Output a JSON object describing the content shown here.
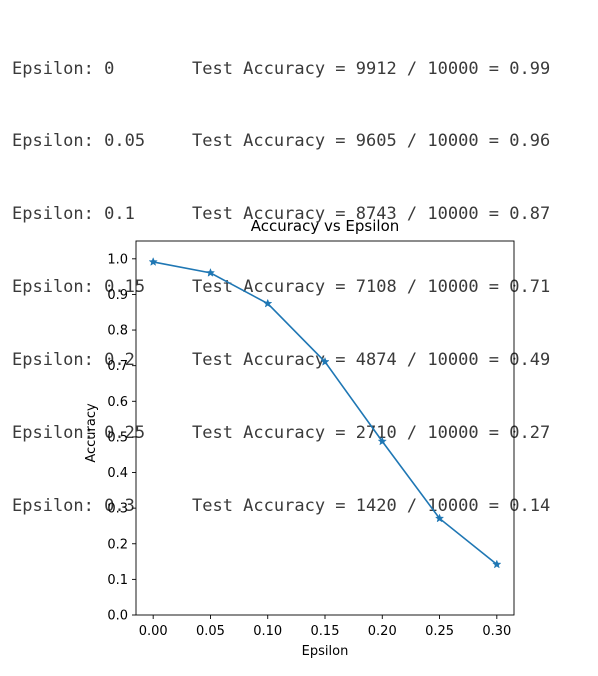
{
  "log": [
    {
      "epsilon": "Epsilon: 0",
      "result": "Test Accuracy = 9912 / 10000 = 0.99"
    },
    {
      "epsilon": "Epsilon: 0.05",
      "result": "Test Accuracy = 9605 / 10000 = 0.96"
    },
    {
      "epsilon": "Epsilon: 0.1",
      "result": "Test Accuracy = 8743 / 10000 = 0.87"
    },
    {
      "epsilon": "Epsilon: 0.15",
      "result": "Test Accuracy = 7108 / 10000 = 0.71"
    },
    {
      "epsilon": "Epsilon: 0.2",
      "result": "Test Accuracy = 4874 / 10000 = 0.49"
    },
    {
      "epsilon": "Epsilon: 0.25",
      "result": "Test Accuracy = 2710 / 10000 = 0.27"
    },
    {
      "epsilon": "Epsilon: 0.3",
      "result": "Test Accuracy = 1420 / 10000 = 0.14"
    }
  ],
  "chart_data": {
    "type": "line",
    "title": "Accuracy vs Epsilon",
    "xlabel": "Epsilon",
    "ylabel": "Accuracy",
    "x": [
      0,
      0.05,
      0.1,
      0.15,
      0.2,
      0.25,
      0.3
    ],
    "series": [
      {
        "values": [
          0.9912,
          0.9605,
          0.8743,
          0.7108,
          0.4874,
          0.271,
          0.142
        ]
      }
    ],
    "xlim": [
      -0.015,
      0.315
    ],
    "ylim": [
      0,
      1.05
    ],
    "xticks": [
      0,
      0.05,
      0.1,
      0.15,
      0.2,
      0.25,
      0.3
    ],
    "xtick_labels": [
      "0.00",
      "0.05",
      "0.10",
      "0.15",
      "0.20",
      "0.25",
      "0.30"
    ],
    "yticks": [
      0,
      0.1,
      0.2,
      0.3,
      0.4,
      0.5,
      0.6,
      0.7,
      0.8,
      0.9,
      1.0
    ],
    "ytick_labels": [
      "0.0",
      "0.1",
      "0.2",
      "0.3",
      "0.4",
      "0.5",
      "0.6",
      "0.7",
      "0.8",
      "0.9",
      "1.0"
    ],
    "marker": "star",
    "color": "#1f77b4",
    "grid": false
  }
}
